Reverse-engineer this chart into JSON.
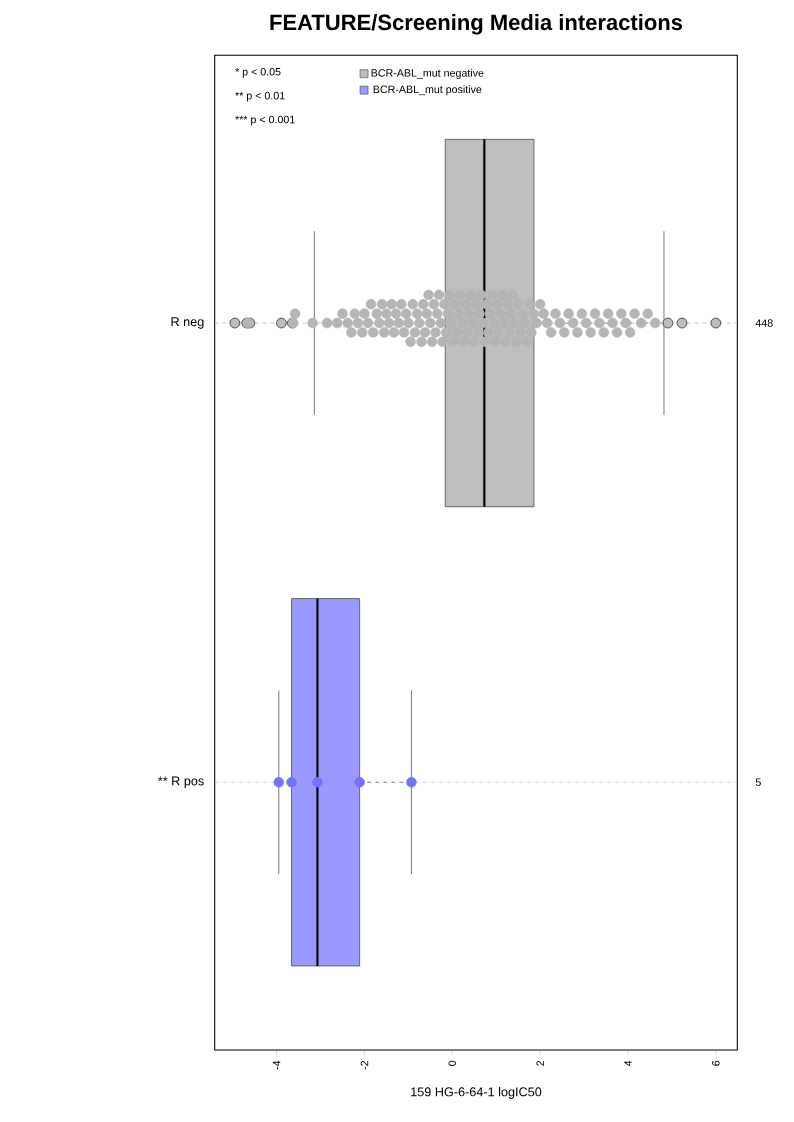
{
  "chart_data": {
    "type": "box",
    "orientation": "horizontal",
    "title": "FEATURE/Screening Media interactions",
    "xlabel": "159 HG-6-64-1 logIC50",
    "categories": [
      "R neg",
      "** R pos"
    ],
    "xlim": [
      -5.41,
      6.49
    ],
    "xticks": [
      -4,
      -2,
      0,
      2,
      4,
      6
    ],
    "grid": "y",
    "legend": "top left",
    "series": [
      {
        "name": "BCR-ABL_mut negative",
        "color": "#bebebe",
        "boxes": [
          {
            "low": -3.14,
            "q1": -0.16,
            "median": 0.73,
            "q3": 1.86,
            "high": 4.82,
            "outliers": [
              -4.95,
              -4.68,
              -4.61,
              -3.89,
              -3.64,
              4.91,
              5.23,
              6.0
            ]
          },
          null
        ]
      },
      {
        "name": "BCR-ABL_mut positive",
        "color": "#9999ff",
        "boxes": [
          null,
          {
            "low": -3.95,
            "q1": -3.66,
            "median": -3.07,
            "q3": -2.11,
            "high": -0.93
          }
        ]
      },
      {
        "type": "scatter",
        "color": "#b5b5b5",
        "x": [
          "R neg",
          "R neg",
          "R neg",
          "R neg",
          "R neg",
          "R neg",
          "R neg",
          "R neg",
          "R neg",
          "R neg",
          "R neg",
          "R neg",
          "R neg",
          "R neg",
          "R neg",
          "R neg",
          "R neg",
          "R neg",
          "R neg",
          "R neg",
          "R neg",
          "R neg",
          "R neg",
          "R neg",
          "R neg",
          "R neg",
          "R neg",
          "R neg",
          "R neg",
          "R neg",
          "R neg",
          "R neg",
          "R neg",
          "R neg",
          "R neg",
          "R neg",
          "R neg",
          "R neg",
          "R neg",
          "R neg",
          "R neg",
          "R neg",
          "R neg",
          "R neg",
          "R neg",
          "R neg",
          "R neg",
          "R neg",
          "R neg",
          "R neg",
          "R neg",
          "R neg",
          "R neg",
          "R neg",
          "R neg",
          "R neg",
          "R neg",
          "R neg",
          "R neg",
          "R neg",
          "R neg",
          "R neg",
          "R neg",
          "R neg",
          "R neg",
          "R neg",
          "R neg",
          "R neg",
          "R neg",
          "R neg",
          "R neg",
          "R neg",
          "R neg",
          "R neg",
          "R neg",
          "R neg",
          "R neg",
          "R neg",
          "R neg",
          "R neg",
          "R neg",
          "R neg",
          "R neg",
          "R neg",
          "R neg",
          "R neg",
          "R neg",
          "R neg",
          "R neg",
          "R neg",
          "R neg",
          "R neg",
          "R neg",
          "R neg",
          "R neg",
          "R neg",
          "R neg",
          "R neg",
          "R neg",
          "R neg",
          "R neg",
          "R neg",
          "R neg",
          "R neg",
          "R neg",
          "R neg",
          "R neg",
          "R neg",
          "R neg",
          "R neg",
          "R neg",
          "R neg",
          "R neg",
          "R neg",
          "R neg",
          "R neg",
          "R neg",
          "R neg",
          "R neg",
          "R neg",
          "R neg",
          "R neg",
          "R neg",
          "R neg",
          "R neg"
        ],
        "values": [
          -4.65,
          -3.62,
          -3.58,
          -3.18,
          -2.85,
          -2.62,
          -2.5,
          -2.38,
          -2.3,
          -2.22,
          -2.15,
          -2.05,
          -2.0,
          -1.92,
          -1.85,
          -1.8,
          -1.72,
          -1.66,
          -1.6,
          -1.55,
          -1.5,
          -1.44,
          -1.38,
          -1.33,
          -1.28,
          -1.22,
          -1.16,
          -1.1,
          -1.05,
          -1.0,
          -0.95,
          -0.9,
          -0.85,
          -0.8,
          -0.75,
          -0.7,
          -0.66,
          -0.62,
          -0.58,
          -0.54,
          -0.5,
          -0.46,
          -0.42,
          -0.38,
          -0.34,
          -0.3,
          -0.26,
          -0.22,
          -0.18,
          -0.14,
          -0.1,
          -0.06,
          -0.02,
          0.02,
          0.06,
          0.1,
          0.14,
          0.18,
          0.22,
          0.26,
          0.3,
          0.34,
          0.38,
          0.42,
          0.46,
          0.5,
          0.54,
          0.58,
          0.62,
          0.66,
          0.7,
          0.74,
          0.78,
          0.82,
          0.86,
          0.9,
          0.94,
          0.98,
          1.02,
          1.06,
          1.1,
          1.14,
          1.18,
          1.22,
          1.26,
          1.3,
          1.34,
          1.38,
          1.42,
          1.46,
          1.5,
          1.55,
          1.6,
          1.65,
          1.7,
          1.75,
          1.8,
          1.86,
          1.92,
          2.0,
          2.08,
          2.16,
          2.25,
          2.35,
          2.45,
          2.55,
          2.65,
          2.75,
          2.85,
          2.95,
          3.05,
          3.15,
          3.25,
          3.35,
          3.45,
          3.55,
          3.65,
          3.75,
          3.85,
          3.95,
          4.05,
          4.15,
          4.3,
          4.45,
          4.62
        ]
      },
      {
        "type": "scatter",
        "color": "#7373ff",
        "x": [
          "** R pos",
          "** R pos",
          "** R pos",
          "** R pos",
          "** R pos"
        ],
        "values": [
          -3.95,
          -3.66,
          -3.07,
          -2.11,
          -0.93
        ]
      }
    ],
    "annotations": [
      "* p < 0.05",
      "** p < 0.01",
      "*** p < 0.001",
      "448",
      "5"
    ]
  }
}
